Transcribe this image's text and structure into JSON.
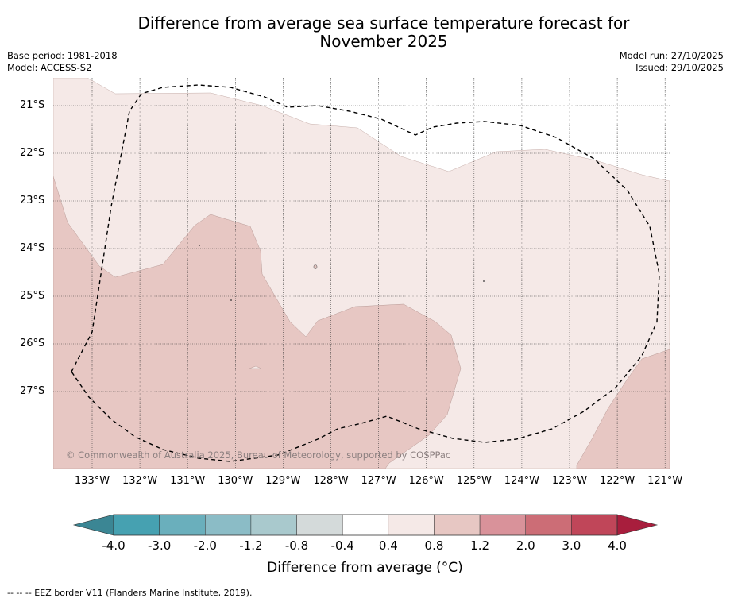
{
  "title": {
    "line1": "Difference from average sea surface temperature forecast for",
    "line2": "November 2025"
  },
  "meta": {
    "base_period": "Base period: 1981-2018",
    "model": "Model: ACCESS-S2",
    "model_run": "Model run: 27/10/2025",
    "issued": "Issued: 29/10/2025"
  },
  "map": {
    "latitude_labels": [
      "21°S",
      "22°S",
      "23°S",
      "24°S",
      "25°S",
      "26°S",
      "27°S"
    ],
    "longitude_labels": [
      "133°W",
      "132°W",
      "131°W",
      "130°W",
      "129°W",
      "128°W",
      "127°W",
      "126°W",
      "125°W",
      "124°W",
      "123°W",
      "122°W",
      "121°W"
    ],
    "zones": {
      "white": "#ffffff",
      "light": "#f5e9e7",
      "medium": "#e7c7c3"
    },
    "eez_color": "#000000",
    "copyright": "© Commonwealth of Australia 2025, Bureau of Meteorology, supported by COSPPac"
  },
  "colorbar": {
    "title": "Difference from average (°C)",
    "tick_labels": [
      "-4.0",
      "-3.0",
      "-2.0",
      "-1.2",
      "-0.8",
      "-0.4",
      "0.4",
      "0.8",
      "1.2",
      "2.0",
      "3.0",
      "4.0"
    ],
    "colors": [
      "#46a1b1",
      "#6aafbc",
      "#8bbcc6",
      "#a9c9cd",
      "#d4dada",
      "#ffffff",
      "#f5e9e7",
      "#e7c7c3",
      "#d9929a",
      "#cc6d76",
      "#c04659"
    ],
    "low_extend_color": "#3b8694",
    "high_extend_color": "#a81e3d"
  },
  "footnote": "-- -- -- EEZ border V11 (Flanders Marine Institute, 2019)."
}
